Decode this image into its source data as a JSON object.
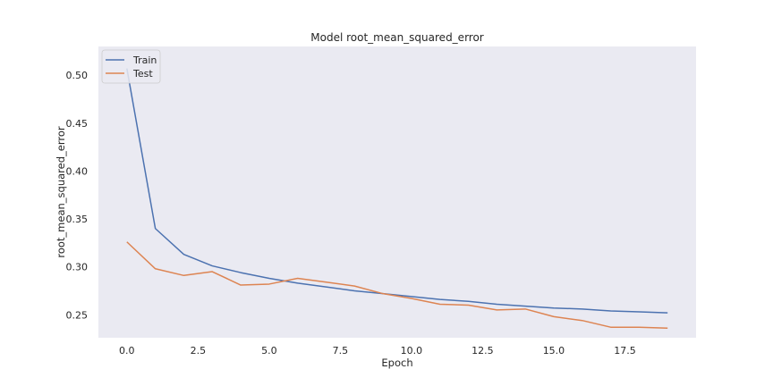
{
  "chart_data": {
    "type": "line",
    "title": "Model root_mean_squared_error",
    "xlabel": "Epoch",
    "ylabel": "root_mean_squared_error",
    "x": [
      0,
      1,
      2,
      3,
      4,
      5,
      6,
      7,
      8,
      9,
      10,
      11,
      12,
      13,
      14,
      15,
      16,
      17,
      18,
      19
    ],
    "xlim": [
      -1.0,
      20.0
    ],
    "ylim": [
      0.226,
      0.53
    ],
    "xticks": [
      0.0,
      2.5,
      5.0,
      7.5,
      10.0,
      12.5,
      15.0,
      17.5
    ],
    "xtick_labels": [
      "0.0",
      "2.5",
      "5.0",
      "7.5",
      "10.0",
      "12.5",
      "15.0",
      "17.5"
    ],
    "yticks": [
      0.25,
      0.3,
      0.35,
      0.4,
      0.45,
      0.5
    ],
    "ytick_labels": [
      "0.25",
      "0.30",
      "0.35",
      "0.40",
      "0.45",
      "0.50"
    ],
    "grid": false,
    "legend_position": "top-left",
    "background": "#eaeaf2",
    "series": [
      {
        "name": "Train",
        "color": "#4c72b0",
        "values": [
          0.507,
          0.34,
          0.313,
          0.301,
          0.294,
          0.288,
          0.283,
          0.279,
          0.275,
          0.272,
          0.269,
          0.266,
          0.264,
          0.261,
          0.259,
          0.257,
          0.256,
          0.254,
          0.253,
          0.252
        ]
      },
      {
        "name": "Test",
        "color": "#dd8452",
        "values": [
          0.326,
          0.298,
          0.291,
          0.295,
          0.281,
          0.282,
          0.288,
          0.284,
          0.28,
          0.272,
          0.267,
          0.261,
          0.26,
          0.255,
          0.256,
          0.248,
          0.244,
          0.237,
          0.237,
          0.236
        ]
      }
    ]
  }
}
